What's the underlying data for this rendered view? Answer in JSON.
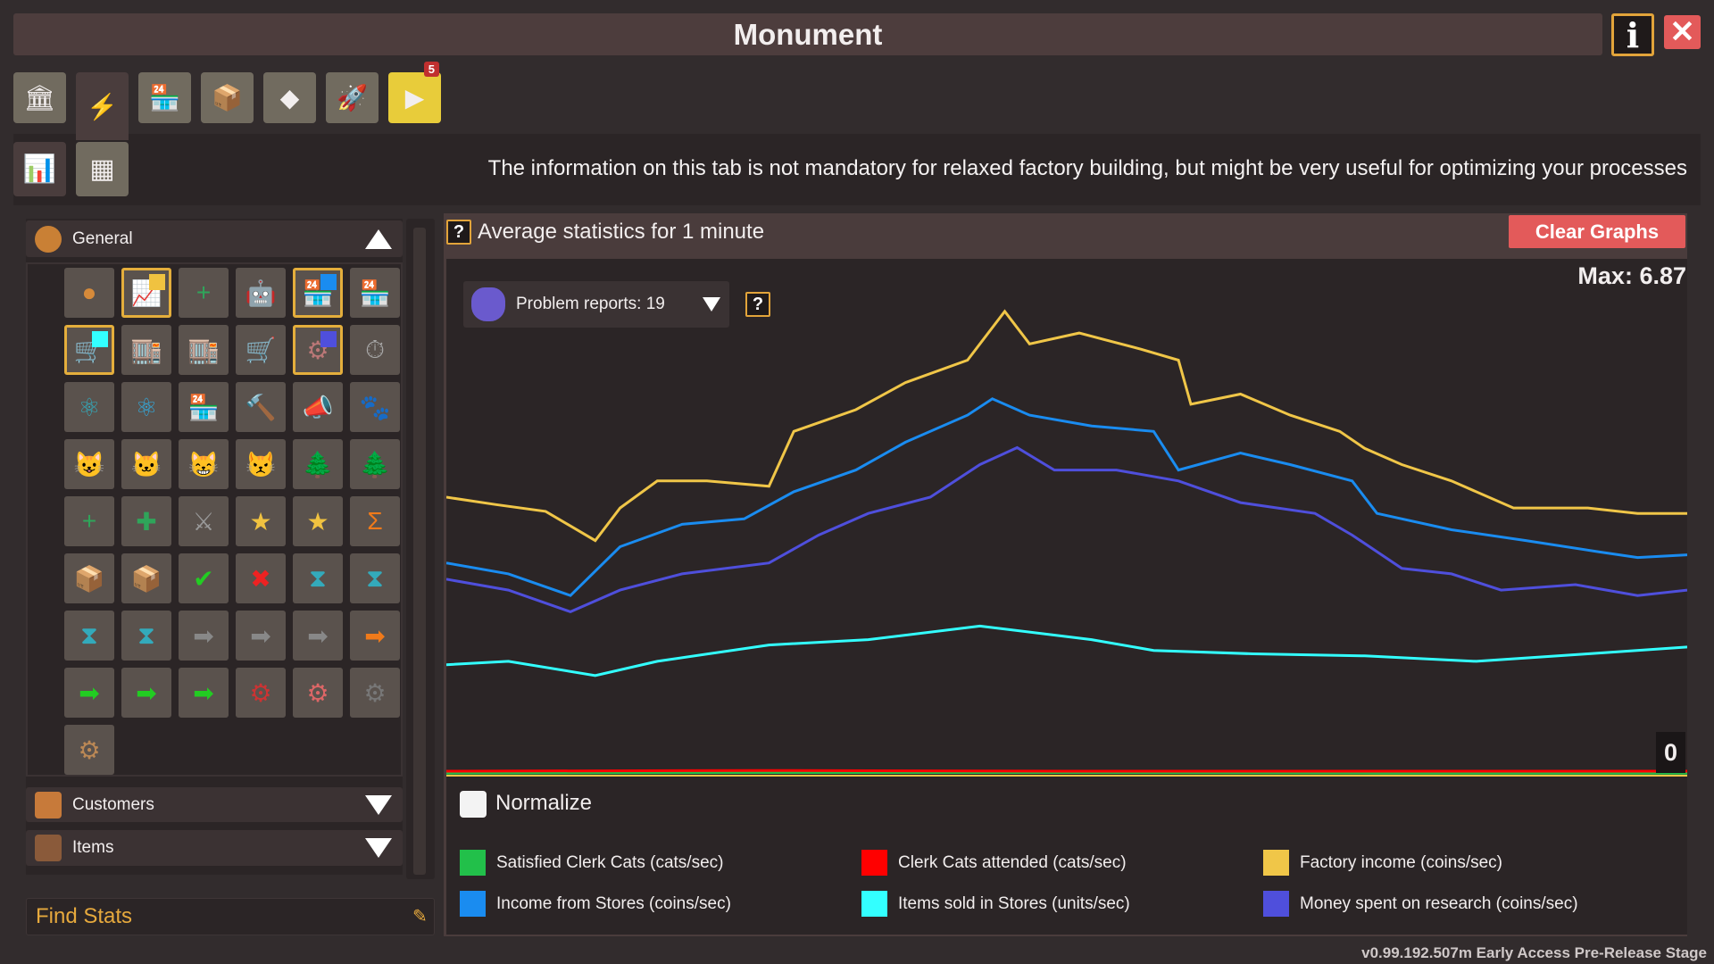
{
  "window": {
    "title": "Monument",
    "info_label": "i",
    "close_label": "✕"
  },
  "toolbar": [
    {
      "name": "monument-building-icon",
      "glyph": "🏛",
      "active": false
    },
    {
      "name": "research-lab-icon",
      "glyph": "⚡",
      "active": true
    },
    {
      "name": "cat-store-icon",
      "glyph": "🏪",
      "active": false
    },
    {
      "name": "boutique-icon",
      "glyph": "📦",
      "active": false
    },
    {
      "name": "crystal-icon",
      "glyph": "◆",
      "active": false
    },
    {
      "name": "rocket-icon",
      "glyph": "🚀",
      "active": false
    },
    {
      "name": "video-icon",
      "glyph": "▶",
      "active": false,
      "badge": "5"
    }
  ],
  "subtabs": [
    {
      "name": "statistics-graph-tab",
      "glyph": "📊",
      "active": true
    },
    {
      "name": "table-tab",
      "glyph": "▦",
      "active": false
    }
  ],
  "description": "The information on this tab is not mandatory for relaxed factory building, but might be very useful for optimizing your processes",
  "sidebar": {
    "sections": [
      {
        "label": "General",
        "expanded": true
      },
      {
        "label": "Customers",
        "expanded": false
      },
      {
        "label": "Items",
        "expanded": false
      }
    ],
    "items": [
      {
        "icon": "coin-icon",
        "glyph": "●",
        "color": "#d68a3a"
      },
      {
        "icon": "factory-income-icon",
        "glyph": "📈",
        "color": "#2fa55a",
        "selected": true,
        "swatch": "#f0c240"
      },
      {
        "icon": "add-coin-icon",
        "glyph": "+",
        "color": "#2fa55a"
      },
      {
        "icon": "robot-cat-icon",
        "glyph": "🤖",
        "color": "#c07a30"
      },
      {
        "icon": "cat-store-income-icon",
        "glyph": "🏪",
        "color": "#b33",
        "selected": true,
        "swatch": "#1a8cf0"
      },
      {
        "icon": "cat-store-clerk-icon",
        "glyph": "🏪",
        "color": "#b33"
      },
      {
        "icon": "cat-store-sold-icon",
        "glyph": "🛒",
        "color": "#b33",
        "selected": true,
        "swatch": "#33ffff"
      },
      {
        "icon": "boutique-income-icon",
        "glyph": "🏬",
        "color": "#6b3"
      },
      {
        "icon": "boutique-clerk-icon",
        "glyph": "🏬",
        "color": "#6b3"
      },
      {
        "icon": "boutique-sold-icon",
        "glyph": "🛒",
        "color": "#6b3"
      },
      {
        "icon": "research-spent-icon",
        "glyph": "⚙",
        "color": "#b77",
        "selected": true,
        "swatch": "#4f4fdc"
      },
      {
        "icon": "timer-icon",
        "glyph": "⏱",
        "color": "#aaa"
      },
      {
        "icon": "research-station-icon",
        "glyph": "⚛",
        "color": "#3ab"
      },
      {
        "icon": "atom-icon",
        "glyph": "⚛",
        "color": "#3ad"
      },
      {
        "icon": "cat-store-icon",
        "glyph": "🏪",
        "color": "#b33"
      },
      {
        "icon": "blueprint-build-icon",
        "glyph": "🔨",
        "color": "#eee"
      },
      {
        "icon": "megaphone-icon",
        "glyph": "📣",
        "color": "#2fa55a"
      },
      {
        "icon": "cat-group-icon",
        "glyph": "🐾",
        "color": "#d83"
      },
      {
        "icon": "happy-cat-icon",
        "glyph": "😺",
        "color": "#f07a3a"
      },
      {
        "icon": "neutral-cat-icon",
        "glyph": "🐱",
        "color": "#8c6"
      },
      {
        "icon": "tongue-cat-icon",
        "glyph": "😸",
        "color": "#f06a4a"
      },
      {
        "icon": "grumpy-cat-icon",
        "glyph": "😾",
        "color": "#55a"
      },
      {
        "icon": "trees-icon",
        "glyph": "🌲",
        "color": "#2fa55a"
      },
      {
        "icon": "coin-trees-icon",
        "glyph": "🌲",
        "color": "#d68a3a"
      },
      {
        "icon": "add-up-icon",
        "glyph": "+",
        "color": "#2fa55a"
      },
      {
        "icon": "add-item-icon",
        "glyph": "✚",
        "color": "#2fa55a"
      },
      {
        "icon": "viking-cat-icon",
        "glyph": "⚔",
        "color": "#999"
      },
      {
        "icon": "star-build-icon",
        "glyph": "★",
        "color": "#f0c240"
      },
      {
        "icon": "star-shop-icon",
        "glyph": "★",
        "color": "#f0c240"
      },
      {
        "icon": "sigma-icon",
        "glyph": "Σ",
        "color": "#f07a1a"
      },
      {
        "icon": "box-build-icon",
        "glyph": "📦",
        "color": "#b85"
      },
      {
        "icon": "box-shop-icon",
        "glyph": "📦",
        "color": "#b85"
      },
      {
        "icon": "build-success-icon",
        "glyph": "✔",
        "color": "#2c2"
      },
      {
        "icon": "build-fail-icon",
        "glyph": "✖",
        "color": "#e22"
      },
      {
        "icon": "hourglass-add-icon",
        "glyph": "⧗",
        "color": "#3ab"
      },
      {
        "icon": "hourglass-remove-icon",
        "glyph": "⧗",
        "color": "#3ab"
      },
      {
        "icon": "hourglass-plus-icon",
        "glyph": "⧗",
        "color": "#3ab"
      },
      {
        "icon": "hourglass-income-icon",
        "glyph": "⧗",
        "color": "#3ab"
      },
      {
        "icon": "conveyor-icon",
        "glyph": "➡",
        "color": "#888"
      },
      {
        "icon": "conveyor-build-icon",
        "glyph": "➡",
        "color": "#888"
      },
      {
        "icon": "conveyor-cat-icon",
        "glyph": "➡",
        "color": "#888"
      },
      {
        "icon": "conveyor-sum-icon",
        "glyph": "➡",
        "color": "#f07a1a"
      },
      {
        "icon": "conveyor-green-icon",
        "glyph": "➡",
        "color": "#2c2"
      },
      {
        "icon": "conveyor-green-cat-icon",
        "glyph": "➡",
        "color": "#2c2"
      },
      {
        "icon": "conveyor-green-box-icon",
        "glyph": "➡",
        "color": "#2c2"
      },
      {
        "icon": "red-machine-icon",
        "glyph": "⚙",
        "color": "#c33"
      },
      {
        "icon": "pink-machine-icon",
        "glyph": "⚙",
        "color": "#d66"
      },
      {
        "icon": "dark-machine-icon",
        "glyph": "⚙",
        "color": "#777"
      },
      {
        "icon": "machine-cat-icon",
        "glyph": "⚙",
        "color": "#b85"
      }
    ],
    "search_placeholder": "Find Stats"
  },
  "panel": {
    "title": "Average statistics for 1 minute",
    "help_label": "?",
    "clear_label": "Clear Graphs",
    "max_label": "Max: 6.87",
    "zero_label": "0",
    "dropdown_value": "Problem reports: 19",
    "normalize_label": "Normalize",
    "normalize_checked": false
  },
  "chart_data": {
    "type": "line",
    "title": "",
    "xlabel": "",
    "ylabel": "",
    "ylim": [
      0,
      6.87
    ],
    "grid": false,
    "legend_placement": "bottom",
    "series": [
      {
        "name": "Satisfied Clerk Cats (cats/sec)",
        "color": "#22c04a",
        "x": [
          0,
          25,
          50,
          75,
          100
        ],
        "y": [
          0.01,
          0.02,
          0.02,
          0.01,
          0.01
        ]
      },
      {
        "name": "Clerk Cats attended (cats/sec)",
        "color": "#ff0000",
        "x": [
          0,
          25,
          50,
          75,
          100
        ],
        "y": [
          0.04,
          0.05,
          0.04,
          0.04,
          0.04
        ]
      },
      {
        "name": "Factory income (coins/sec)",
        "color": "#f0c648",
        "x": [
          0,
          4,
          8,
          12,
          14,
          17,
          21,
          26,
          28,
          33,
          37,
          42,
          45,
          47,
          51,
          56,
          59,
          60,
          64,
          68,
          72,
          74,
          77,
          81,
          86,
          92,
          96,
          100
        ],
        "y": [
          4.08,
          3.97,
          3.87,
          3.44,
          3.92,
          4.32,
          4.32,
          4.24,
          5.05,
          5.37,
          5.77,
          6.1,
          6.82,
          6.34,
          6.5,
          6.26,
          6.1,
          5.45,
          5.6,
          5.29,
          5.05,
          4.8,
          4.56,
          4.32,
          3.92,
          3.92,
          3.84,
          3.84
        ]
      },
      {
        "name": "Income from Stores (coins/sec)",
        "color": "#1a8cf0",
        "x": [
          0,
          5,
          10,
          14,
          19,
          24,
          28,
          33,
          37,
          42,
          44,
          47,
          52,
          57,
          59,
          64,
          68,
          73,
          75,
          81,
          87,
          93,
          96,
          100
        ],
        "y": [
          3.11,
          2.95,
          2.63,
          3.35,
          3.68,
          3.76,
          4.16,
          4.48,
          4.89,
          5.29,
          5.53,
          5.29,
          5.13,
          5.05,
          4.48,
          4.73,
          4.56,
          4.32,
          3.84,
          3.6,
          3.44,
          3.27,
          3.19,
          3.23
        ]
      },
      {
        "name": "Items sold in Stores (units/sec)",
        "color": "#33ffff",
        "x": [
          0,
          5,
          12,
          17,
          26,
          34,
          43,
          52,
          57,
          65,
          74,
          83,
          92,
          100
        ],
        "y": [
          1.61,
          1.66,
          1.45,
          1.66,
          1.9,
          1.98,
          2.18,
          1.98,
          1.82,
          1.77,
          1.74,
          1.66,
          1.77,
          1.87
        ]
      },
      {
        "name": "Money spent on research (coins/sec)",
        "color": "#4f4fdc",
        "x": [
          0,
          5,
          10,
          14,
          19,
          26,
          30,
          34,
          39,
          43,
          46,
          49,
          54,
          59,
          64,
          70,
          73,
          77,
          81,
          85,
          91,
          96,
          100
        ],
        "y": [
          2.87,
          2.71,
          2.39,
          2.71,
          2.95,
          3.11,
          3.52,
          3.84,
          4.08,
          4.56,
          4.81,
          4.48,
          4.48,
          4.32,
          4.0,
          3.84,
          3.52,
          3.03,
          2.95,
          2.71,
          2.79,
          2.63,
          2.71
        ]
      }
    ]
  },
  "version": "v0.99.192.507m Early Access Pre-Release Stage"
}
